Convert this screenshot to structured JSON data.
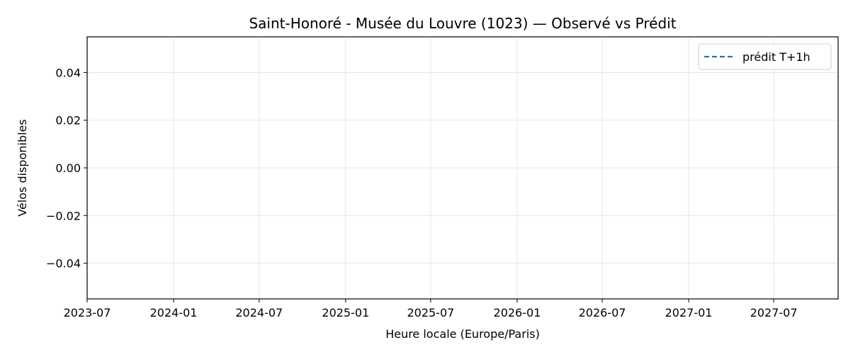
{
  "chart_data": {
    "type": "line",
    "title": "Saint-Honoré - Musée du Louvre (1023) — Observé vs Prédit",
    "xlabel": "Heure locale (Europe/Paris)",
    "ylabel": "Vélos disponibles",
    "x_ticks": [
      "2023-07",
      "2024-01",
      "2024-07",
      "2025-01",
      "2025-07",
      "2026-01",
      "2026-07",
      "2027-01",
      "2027-07"
    ],
    "xlim": [
      "2023-07-01",
      "2027-11-15"
    ],
    "y_ticks": [
      0.04,
      0.02,
      0.0,
      -0.02,
      -0.04
    ],
    "y_tick_labels": [
      "0.04",
      "0.02",
      "0.00",
      "−0.02",
      "−0.04"
    ],
    "ylim": [
      -0.055,
      0.055
    ],
    "grid": true,
    "legend_position": "upper-right",
    "series": [
      {
        "name": "prédit T+1h",
        "style": "dashed",
        "color": "#1f77b4",
        "x": [],
        "y": []
      }
    ]
  }
}
